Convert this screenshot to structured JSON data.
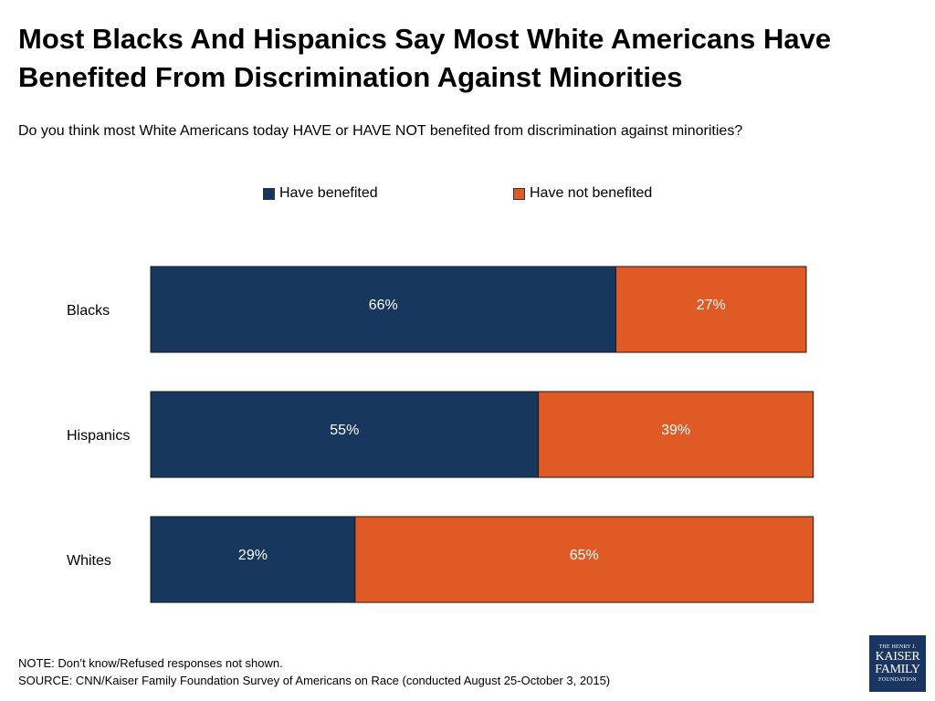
{
  "header": {
    "title": "Most Blacks And Hispanics Say Most White Americans Have Benefited From Discrimination Against Minorities",
    "subtitle": "Do you think most White Americans today HAVE or HAVE NOT benefited from discrimination against minorities?"
  },
  "chart_data": {
    "type": "bar",
    "orientation": "horizontal",
    "stacked": true,
    "title": "Most Blacks And Hispanics Say Most White Americans Have Benefited From Discrimination Against Minorities",
    "subtitle": "Do you think most White Americans today HAVE or HAVE NOT benefited from discrimination against minorities?",
    "categories": [
      "Blacks",
      "Hispanics",
      "Whites"
    ],
    "series": [
      {
        "name": "Have benefited",
        "values": [
          66,
          55,
          29
        ],
        "color": "#17375e"
      },
      {
        "name": "Have not benefited",
        "values": [
          27,
          39,
          65
        ],
        "color": "#e05a26"
      }
    ],
    "value_suffix": "%",
    "xlim": [
      0,
      100
    ],
    "xlabel": "",
    "ylabel": "",
    "legend_position": "top-center",
    "grid": false
  },
  "footer": {
    "note": "NOTE: Don’t know/Refused responses not shown.",
    "source": "SOURCE: CNN/Kaiser Family Foundation Survey of Americans on Race (conducted August 25-October 3, 2015)"
  },
  "logo": {
    "line1": "THE HENRY J.",
    "line2": "KAISER",
    "line3": "FAMILY",
    "line4": "FOUNDATION"
  }
}
